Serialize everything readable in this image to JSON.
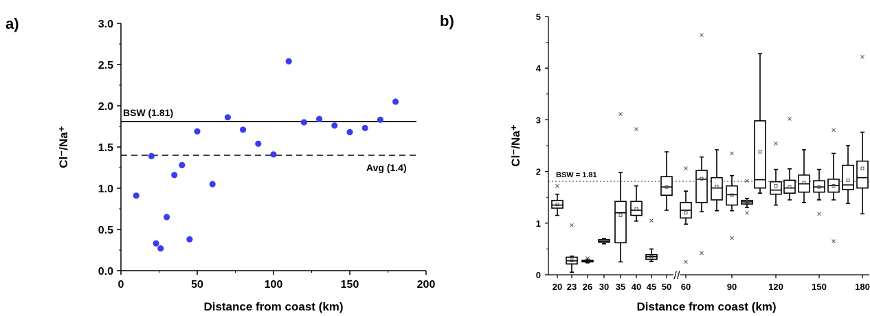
{
  "panel_a": {
    "label": "a)",
    "refs": {
      "bsw": {
        "label": "BSW (1.81)",
        "value": 1.81
      },
      "avg": {
        "label": "Avg (1.4)",
        "value": 1.4
      }
    }
  },
  "panel_b": {
    "label": "b)",
    "ref": {
      "label": "BSW = 1.81",
      "value": 1.81
    }
  },
  "chart_data": [
    {
      "type": "scatter",
      "xlabel": "Distance from coast (km)",
      "ylabel": "Cl⁻/Na⁺",
      "xlim": [
        0,
        200
      ],
      "ylim": [
        0,
        3
      ],
      "x_ticks": [
        "0",
        "50",
        "100",
        "150",
        "200"
      ],
      "y_ticks": [
        "0.0",
        "0.5",
        "1.0",
        "1.5",
        "2.0",
        "2.5",
        "3.0"
      ],
      "marker_color": "#3b3bf0",
      "series": [
        {
          "points": [
            [
              10,
              0.91
            ],
            [
              20,
              1.39
            ],
            [
              23,
              0.33
            ],
            [
              26,
              0.27
            ],
            [
              30,
              0.65
            ],
            [
              35,
              1.16
            ],
            [
              40,
              1.28
            ],
            [
              45,
              0.38
            ],
            [
              50,
              1.69
            ],
            [
              60,
              1.05
            ],
            [
              70,
              1.86
            ],
            [
              80,
              1.71
            ],
            [
              90,
              1.54
            ],
            [
              100,
              1.41
            ],
            [
              110,
              2.54
            ],
            [
              120,
              1.8
            ],
            [
              130,
              1.84
            ],
            [
              140,
              1.76
            ],
            [
              150,
              1.68
            ],
            [
              160,
              1.73
            ],
            [
              170,
              1.83
            ],
            [
              180,
              2.05
            ]
          ]
        }
      ]
    },
    {
      "type": "box",
      "xlabel": "Distance from coast (km)",
      "ylabel": "Cl⁻/Na⁺",
      "ylim": [
        0,
        5
      ],
      "y_ticks": [
        "0",
        "1",
        "2",
        "3",
        "4",
        "5"
      ],
      "x_tick_labels": [
        "20",
        "23",
        "26",
        "30",
        "35",
        "40",
        "45",
        "50",
        "60",
        "90",
        "120",
        "150",
        "180"
      ],
      "axis_break": "//",
      "boxes": [
        {
          "x": 20,
          "q1": 1.29,
          "median": 1.35,
          "q3": 1.44,
          "mean": 1.36,
          "wlo": 1.15,
          "whi": 1.56,
          "outliers": [
            1.72
          ]
        },
        {
          "x": 23,
          "q1": 0.21,
          "median": 0.27,
          "q3": 0.34,
          "mean": 0.28,
          "wlo": 0.05,
          "whi": 0.36,
          "outliers": [
            0.96
          ]
        },
        {
          "x": 26,
          "q1": 0.25,
          "median": 0.27,
          "q3": 0.28,
          "mean": 0.27,
          "wlo": 0.23,
          "whi": 0.3,
          "outliers": [
            0.32
          ]
        },
        {
          "x": 30,
          "q1": 0.63,
          "median": 0.65,
          "q3": 0.68,
          "mean": 0.65,
          "wlo": 0.6,
          "whi": 0.7,
          "outliers": []
        },
        {
          "x": 35,
          "q1": 0.62,
          "median": 1.2,
          "q3": 1.42,
          "mean": 1.15,
          "wlo": 0.25,
          "whi": 1.98,
          "outliers": [
            3.11
          ]
        },
        {
          "x": 40,
          "q1": 1.15,
          "median": 1.25,
          "q3": 1.42,
          "mean": 1.28,
          "wlo": 1.04,
          "whi": 1.72,
          "outliers": [
            2.82
          ]
        },
        {
          "x": 45,
          "q1": 0.3,
          "median": 0.35,
          "q3": 0.39,
          "mean": 0.35,
          "wlo": 0.26,
          "whi": 0.5,
          "outliers": [
            1.05
          ]
        },
        {
          "x": 50,
          "q1": 1.54,
          "median": 1.7,
          "q3": 1.9,
          "mean": 1.7,
          "wlo": 1.25,
          "whi": 2.38,
          "outliers": []
        },
        {
          "x": 60,
          "q1": 1.1,
          "median": 1.25,
          "q3": 1.4,
          "mean": 1.2,
          "wlo": 0.98,
          "whi": 1.62,
          "outliers": [
            2.06,
            0.25
          ]
        },
        {
          "x": 70,
          "q1": 1.4,
          "median": 1.85,
          "q3": 2.02,
          "mean": 1.86,
          "wlo": 1.22,
          "whi": 2.28,
          "outliers": [
            4.64,
            0.42
          ]
        },
        {
          "x": 80,
          "q1": 1.45,
          "median": 1.68,
          "q3": 1.88,
          "mean": 1.71,
          "wlo": 1.24,
          "whi": 2.42,
          "outliers": []
        },
        {
          "x": 90,
          "q1": 1.35,
          "median": 1.55,
          "q3": 1.72,
          "mean": 1.54,
          "wlo": 1.24,
          "whi": 1.92,
          "outliers": [
            2.35,
            0.71
          ]
        },
        {
          "x": 100,
          "q1": 1.37,
          "median": 1.41,
          "q3": 1.44,
          "mean": 1.41,
          "wlo": 1.3,
          "whi": 1.48,
          "outliers": [
            1.2,
            1.82
          ]
        },
        {
          "x": 110,
          "q1": 1.68,
          "median": 1.84,
          "q3": 2.98,
          "mean": 2.38,
          "wlo": 1.58,
          "whi": 4.28,
          "outliers": []
        },
        {
          "x": 120,
          "q1": 1.56,
          "median": 1.64,
          "q3": 1.8,
          "mean": 1.72,
          "wlo": 1.35,
          "whi": 2.04,
          "outliers": [
            2.54
          ]
        },
        {
          "x": 130,
          "q1": 1.58,
          "median": 1.68,
          "q3": 1.83,
          "mean": 1.7,
          "wlo": 1.45,
          "whi": 2.05,
          "outliers": [
            3.02
          ]
        },
        {
          "x": 140,
          "q1": 1.6,
          "median": 1.76,
          "q3": 1.93,
          "mean": 1.78,
          "wlo": 1.4,
          "whi": 2.42,
          "outliers": []
        },
        {
          "x": 150,
          "q1": 1.6,
          "median": 1.7,
          "q3": 1.82,
          "mean": 1.7,
          "wlo": 1.45,
          "whi": 2.04,
          "outliers": [
            1.18
          ]
        },
        {
          "x": 160,
          "q1": 1.6,
          "median": 1.73,
          "q3": 1.85,
          "mean": 1.72,
          "wlo": 1.45,
          "whi": 2.35,
          "outliers": [
            2.8,
            0.65
          ]
        },
        {
          "x": 170,
          "q1": 1.65,
          "median": 1.74,
          "q3": 2.12,
          "mean": 1.83,
          "wlo": 1.38,
          "whi": 2.5,
          "outliers": []
        },
        {
          "x": 180,
          "q1": 1.68,
          "median": 1.88,
          "q3": 2.2,
          "mean": 2.06,
          "wlo": 1.18,
          "whi": 2.76,
          "outliers": [
            4.22
          ]
        }
      ]
    }
  ]
}
